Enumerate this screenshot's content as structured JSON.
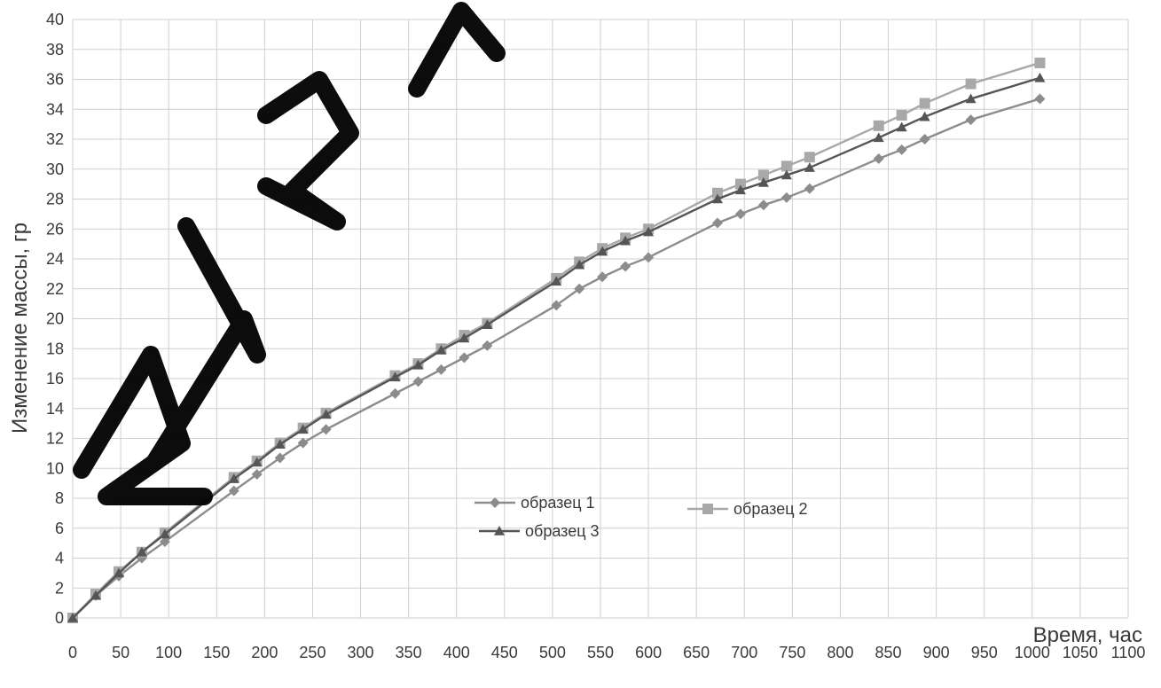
{
  "chart_data": {
    "type": "line",
    "title": "",
    "xlabel": "Время, час",
    "ylabel": "Изменение массы, гр",
    "xlim": [
      0,
      1100
    ],
    "ylim": [
      0,
      40
    ],
    "x_ticks": [
      0,
      50,
      100,
      150,
      200,
      250,
      300,
      350,
      400,
      450,
      500,
      550,
      600,
      650,
      700,
      750,
      800,
      850,
      900,
      950,
      1000,
      1050,
      1100
    ],
    "y_ticks": [
      0,
      2,
      4,
      6,
      8,
      10,
      12,
      14,
      16,
      18,
      20,
      22,
      24,
      26,
      28,
      30,
      32,
      34,
      36,
      38,
      40
    ],
    "grid": true,
    "legend_position": "center",
    "series": [
      {
        "name": "образец 1",
        "marker": "diamond",
        "color": "#8c8c8c",
        "x": [
          0,
          24,
          48,
          72,
          96,
          168,
          192,
          216,
          240,
          264,
          336,
          360,
          384,
          408,
          432,
          504,
          528,
          552,
          576,
          600,
          672,
          696,
          720,
          744,
          768,
          840,
          864,
          888,
          936,
          1008
        ],
        "y": [
          0,
          1.5,
          2.8,
          4.0,
          5.1,
          8.5,
          9.6,
          10.7,
          11.7,
          12.6,
          15.0,
          15.8,
          16.6,
          17.4,
          18.2,
          20.9,
          22.0,
          22.8,
          23.5,
          24.1,
          26.4,
          27.0,
          27.6,
          28.1,
          28.7,
          30.7,
          31.3,
          32.0,
          33.3,
          34.7
        ]
      },
      {
        "name": "образец 2",
        "marker": "square",
        "color": "#a8a8a8",
        "x": [
          0,
          24,
          48,
          72,
          96,
          168,
          192,
          216,
          240,
          264,
          336,
          360,
          384,
          408,
          432,
          504,
          528,
          552,
          576,
          600,
          672,
          696,
          720,
          744,
          768,
          840,
          864,
          888,
          936,
          1008
        ],
        "y": [
          0,
          1.6,
          3.1,
          4.4,
          5.7,
          9.4,
          10.5,
          11.7,
          12.7,
          13.7,
          16.2,
          17.0,
          18.0,
          18.9,
          19.7,
          22.7,
          23.8,
          24.7,
          25.4,
          26.0,
          28.4,
          29.0,
          29.6,
          30.2,
          30.8,
          32.9,
          33.6,
          34.4,
          35.7,
          37.1
        ]
      },
      {
        "name": "образец 3",
        "marker": "triangle",
        "color": "#555555",
        "x": [
          0,
          24,
          48,
          72,
          96,
          168,
          192,
          216,
          240,
          264,
          336,
          360,
          384,
          408,
          432,
          504,
          528,
          552,
          576,
          600,
          672,
          696,
          720,
          744,
          768,
          840,
          864,
          888,
          936,
          1008
        ],
        "y": [
          0,
          1.5,
          3.0,
          4.4,
          5.6,
          9.3,
          10.4,
          11.6,
          12.6,
          13.6,
          16.1,
          16.9,
          17.9,
          18.7,
          19.6,
          22.5,
          23.6,
          24.5,
          25.2,
          25.8,
          28.0,
          28.6,
          29.1,
          29.6,
          30.1,
          32.1,
          32.8,
          33.5,
          34.7,
          36.1
        ]
      }
    ]
  }
}
